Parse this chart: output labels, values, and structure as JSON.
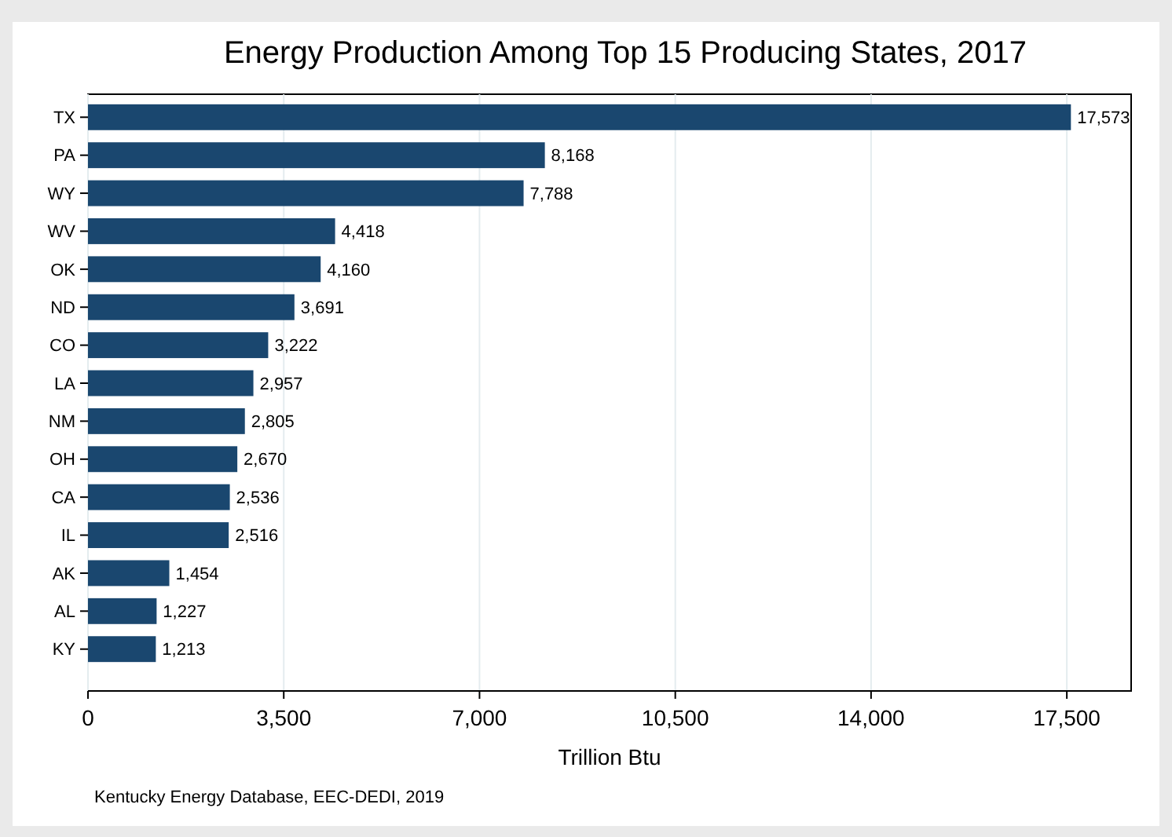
{
  "chart_data": {
    "type": "bar",
    "orientation": "horizontal",
    "title": "Energy Production Among Top 15 Producing States, 2017",
    "xlabel": "Trillion Btu",
    "categories": [
      "TX",
      "PA",
      "WY",
      "WV",
      "OK",
      "ND",
      "CO",
      "LA",
      "NM",
      "OH",
      "CA",
      "IL",
      "AK",
      "AL",
      "KY"
    ],
    "values": [
      17573,
      8168,
      7788,
      4418,
      4160,
      3691,
      3222,
      2957,
      2805,
      2670,
      2536,
      2516,
      1454,
      1227,
      1213
    ],
    "value_labels": [
      "17,573",
      "8,168",
      "7,788",
      "4,418",
      "4,160",
      "3,691",
      "3,222",
      "2,957",
      "2,805",
      "2,670",
      "2,536",
      "2,516",
      "1,454",
      "1,227",
      "1,213"
    ],
    "color": "#1a476f",
    "xlim": [
      0,
      18650
    ],
    "xticks": [
      0,
      {
        "value": 3500,
        "label": "3,500"
      },
      {
        "value": 7000,
        "label": "7,000"
      },
      {
        "value": 10500,
        "label": "10,500"
      },
      {
        "value": 14000,
        "label": "14,000"
      },
      {
        "value": 17500,
        "label": "17,500"
      }
    ],
    "grid": "x",
    "annotations": [
      "Kentucky Energy Database, EEC-DEDI, 2019"
    ]
  }
}
